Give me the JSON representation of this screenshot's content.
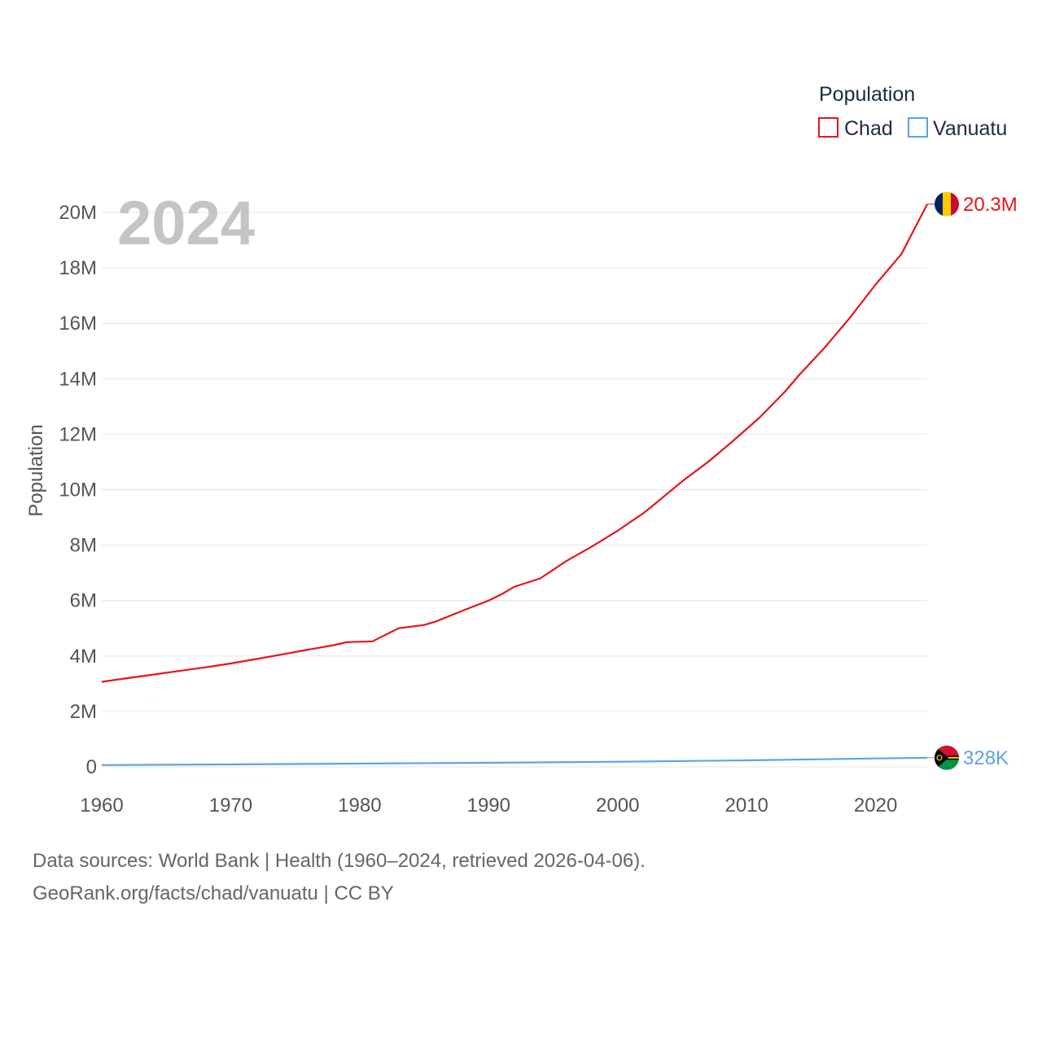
{
  "chart_data": {
    "type": "line",
    "year_label": "2024",
    "ylabel": "Population",
    "xlabel": "",
    "xlim": [
      1960,
      2024
    ],
    "ylim": [
      0,
      20000000
    ],
    "x_ticks": [
      1960,
      1970,
      1980,
      1990,
      2000,
      2010,
      2020
    ],
    "y_ticks": [
      0,
      2000000,
      4000000,
      6000000,
      8000000,
      10000000,
      12000000,
      14000000,
      16000000,
      18000000,
      20000000
    ],
    "y_tick_labels": [
      "0",
      "2M",
      "4M",
      "6M",
      "8M",
      "10M",
      "12M",
      "14M",
      "16M",
      "18M",
      "20M"
    ],
    "x_tick_labels": [
      "1960",
      "1970",
      "1980",
      "1990",
      "2000",
      "2010",
      "2020"
    ],
    "legend": {
      "title": "Population",
      "position": "top-right"
    },
    "grid": true,
    "series": [
      {
        "name": "Chad",
        "color": "#e8141c",
        "end_label": "20.3M",
        "flag": "chad",
        "points": [
          [
            1960,
            3070000
          ],
          [
            1962,
            3200000
          ],
          [
            1964,
            3330000
          ],
          [
            1966,
            3460000
          ],
          [
            1968,
            3590000
          ],
          [
            1970,
            3730000
          ],
          [
            1972,
            3890000
          ],
          [
            1974,
            4060000
          ],
          [
            1976,
            4230000
          ],
          [
            1978,
            4390000
          ],
          [
            1979,
            4500000
          ],
          [
            1981,
            4530000
          ],
          [
            1983,
            5000000
          ],
          [
            1985,
            5120000
          ],
          [
            1986,
            5260000
          ],
          [
            1988,
            5640000
          ],
          [
            1990,
            6000000
          ],
          [
            1991,
            6230000
          ],
          [
            1992,
            6500000
          ],
          [
            1994,
            6800000
          ],
          [
            1996,
            7420000
          ],
          [
            1998,
            7950000
          ],
          [
            2000,
            8520000
          ],
          [
            2002,
            9150000
          ],
          [
            2003,
            9530000
          ],
          [
            2005,
            10300000
          ],
          [
            2007,
            11000000
          ],
          [
            2009,
            11780000
          ],
          [
            2011,
            12600000
          ],
          [
            2013,
            13550000
          ],
          [
            2014,
            14100000
          ],
          [
            2016,
            15100000
          ],
          [
            2018,
            16200000
          ],
          [
            2020,
            17400000
          ],
          [
            2022,
            18500000
          ],
          [
            2023,
            19400000
          ],
          [
            2024,
            20300000
          ]
        ]
      },
      {
        "name": "Vanuatu",
        "color": "#5ca2e8",
        "end_label": "328K",
        "flag": "vanuatu",
        "points": [
          [
            1960,
            64000
          ],
          [
            1970,
            87000
          ],
          [
            1980,
            118000
          ],
          [
            1990,
            148000
          ],
          [
            2000,
            186000
          ],
          [
            2010,
            236000
          ],
          [
            2020,
            302000
          ],
          [
            2024,
            328000
          ]
        ]
      }
    ]
  },
  "sources": {
    "line1": "Data sources: World Bank | Health (1960–2024, retrieved 2026-04-06).",
    "line2": "GeoRank.org/facts/chad/vanuatu | CC BY"
  }
}
